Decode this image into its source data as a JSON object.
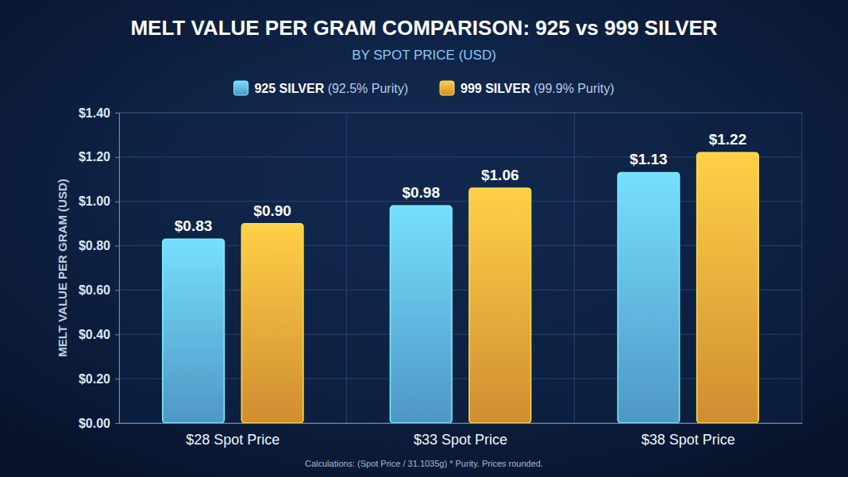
{
  "chart_data": {
    "type": "bar",
    "title": "MELT VALUE PER GRAM COMPARISON: 925 vs 999 SILVER",
    "subtitle": "BY SPOT PRICE (USD)",
    "y_label": "MELT VALUE PER GRAM (USD)",
    "annotation": "Calculations: (Spot Price / 31.1035g) * Purity. Prices rounded.",
    "categories": [
      "$28 Spot Price",
      "$33 Spot Price",
      "$38 Spot Price"
    ],
    "series": [
      {
        "name": "925 SILVER (92.5% Purity)",
        "color": "#5fb4ea",
        "values": [
          0.83,
          0.98,
          1.13
        ],
        "value_labels": [
          "$0.83",
          "$0.98",
          "$1.13"
        ]
      },
      {
        "name": "999 SILVER (99.9% Purity)",
        "color": "#f9a83a",
        "values": [
          0.9,
          1.06,
          1.22
        ],
        "value_labels": [
          "$0.90",
          "$1.06",
          "$1.22"
        ]
      }
    ],
    "ylim": [
      0,
      1.4
    ],
    "yticks": [
      {
        "value": 0,
        "label": "$0.00"
      },
      {
        "value": 0.2,
        "label": "$0.20"
      },
      {
        "value": 0.4,
        "label": "$0.40"
      },
      {
        "value": 0.6,
        "label": "$0.60"
      },
      {
        "value": 0.8,
        "label": "$0.80"
      },
      {
        "value": 1.0,
        "label": "$1.00"
      },
      {
        "value": 1.2,
        "label": "$1.20"
      },
      {
        "value": 1.4,
        "label": "$1.40"
      }
    ],
    "grid": true,
    "legend": "top",
    "data_labels": true
  }
}
